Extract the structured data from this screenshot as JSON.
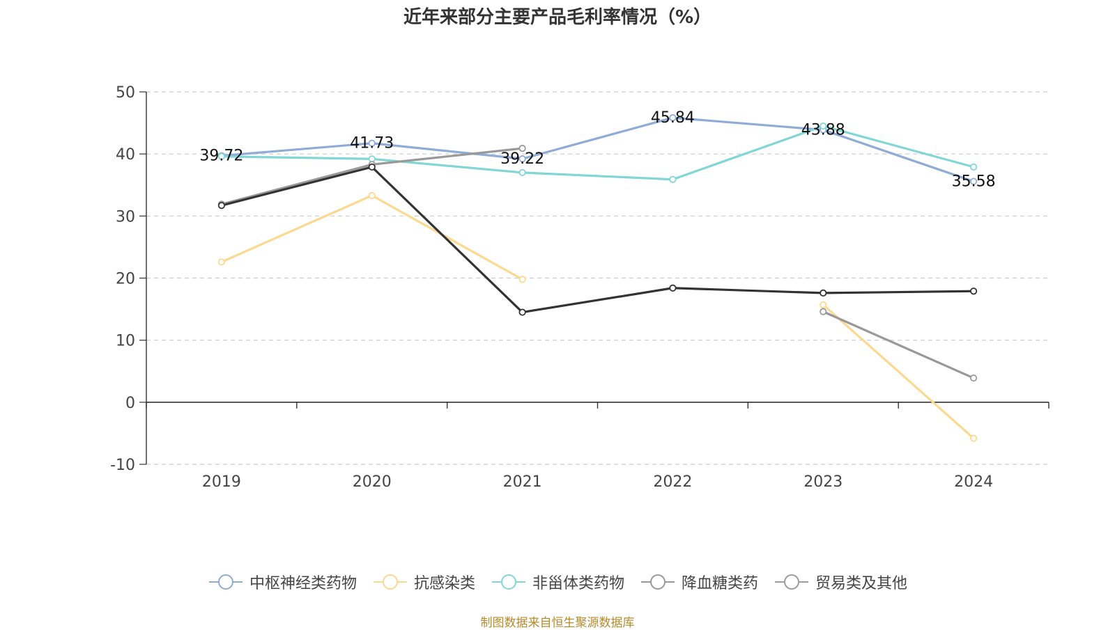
{
  "title": "近年来部分主要产品毛利率情况（%）",
  "source_note": "制图数据来自恒生聚源数据库",
  "chart_data": {
    "type": "line",
    "title": "近年来部分主要产品毛利率情况（%）",
    "categories": [
      "2019",
      "2020",
      "2021",
      "2022",
      "2023",
      "2024"
    ],
    "ylim": [
      -10,
      50
    ],
    "yticks": [
      -10,
      0,
      10,
      20,
      30,
      40,
      50
    ],
    "grid": true,
    "legend_position": "bottom",
    "series": [
      {
        "name": "中枢神经类药物",
        "color": "#8fabd8",
        "values": [
          39.72,
          41.73,
          39.22,
          45.84,
          43.88,
          35.58
        ],
        "labels": [
          "39.72",
          "41.73",
          "39.22",
          "45.84",
          "43.88",
          "35.58"
        ],
        "legend": true
      },
      {
        "name": "抗感染类",
        "color": "#fbd98f",
        "values": [
          22.6,
          33.3,
          19.8,
          null,
          15.7,
          -5.8
        ],
        "legend": true
      },
      {
        "name": "非甾体类药物",
        "color": "#82d6d6",
        "values": [
          39.6,
          39.2,
          37.0,
          35.9,
          44.5,
          37.9
        ],
        "legend": true
      },
      {
        "name": "降血糖类药",
        "color": "#999999",
        "values": [
          31.9,
          38.3,
          40.9,
          null,
          14.6,
          3.9
        ],
        "legend": true
      },
      {
        "name": "贸易类及其他",
        "color": "#9c9c9c",
        "values": [
          null,
          null,
          null,
          null,
          null,
          null
        ],
        "legend": true
      },
      {
        "name": "",
        "color": "#333333",
        "values": [
          31.7,
          37.9,
          14.5,
          18.4,
          17.6,
          17.9
        ],
        "legend": false
      }
    ]
  }
}
